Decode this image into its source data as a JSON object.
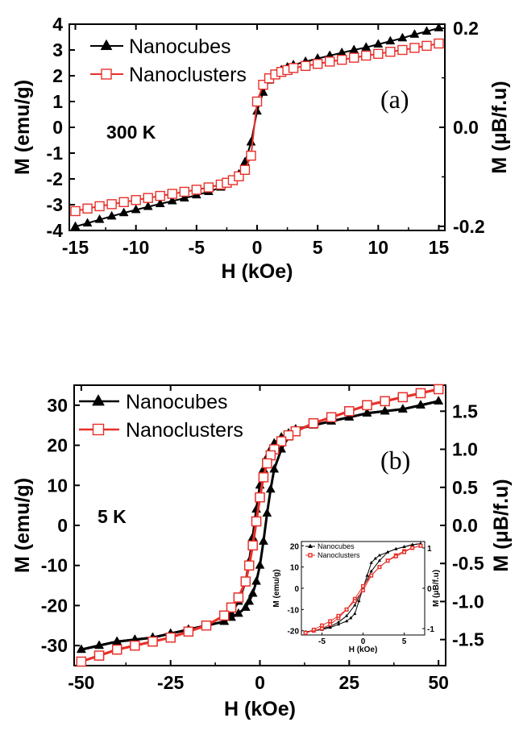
{
  "chart_data": [
    {
      "panel": "a",
      "type": "line",
      "panel_label": "(a)",
      "annotation": "300 K",
      "xlabel": "H (kOe)",
      "ylabel": "M (emu/g)",
      "ylabel_right": "M (μB/f.u)",
      "xlim": [
        -15.5,
        15.5
      ],
      "ylim": [
        -4,
        4
      ],
      "xticks": [
        "-15",
        "-10",
        "-5",
        "0",
        "5",
        "10",
        "15"
      ],
      "yticks": [
        "-4",
        "-3",
        "-2",
        "-1",
        "0",
        "1",
        "2",
        "3",
        "4"
      ],
      "right_ticks": [
        "-0.2",
        "0.0",
        "0.2"
      ],
      "legend": [
        "Nanocubes",
        "Nanoclusters"
      ],
      "colors": {
        "Nanocubes": "#000000",
        "Nanoclusters": "#e8302a"
      },
      "series": [
        {
          "name": "Nanocubes",
          "marker": "triangle",
          "x": [
            -15,
            -14,
            -13,
            -12,
            -11,
            -10,
            -9,
            -8,
            -7,
            -6,
            -5,
            -4,
            -3,
            -2.5,
            -2,
            -1.5,
            -1,
            -0.5,
            0,
            0.5,
            1,
            1.5,
            2,
            2.5,
            3,
            4,
            5,
            6,
            7,
            8,
            9,
            10,
            11,
            12,
            13,
            14,
            15
          ],
          "y": [
            -3.85,
            -3.72,
            -3.58,
            -3.45,
            -3.32,
            -3.2,
            -3.08,
            -2.97,
            -2.86,
            -2.75,
            -2.63,
            -2.5,
            -2.33,
            -2.22,
            -2.06,
            -1.82,
            -1.35,
            -0.58,
            0.62,
            1.35,
            1.82,
            2.06,
            2.22,
            2.33,
            2.42,
            2.55,
            2.67,
            2.78,
            2.89,
            3.0,
            3.1,
            3.22,
            3.34,
            3.46,
            3.6,
            3.72,
            3.85
          ]
        },
        {
          "name": "Nanoclusters",
          "marker": "open-square",
          "x": [
            -15,
            -14,
            -13,
            -12,
            -11,
            -10,
            -9,
            -8,
            -7,
            -6,
            -5,
            -4,
            -3,
            -2.5,
            -2,
            -1.5,
            -1,
            -0.5,
            0,
            0.5,
            1,
            1.5,
            2,
            2.5,
            3,
            4,
            5,
            6,
            7,
            8,
            9,
            10,
            11,
            12,
            13,
            14,
            15
          ],
          "y": [
            -3.25,
            -3.15,
            -3.06,
            -2.98,
            -2.9,
            -2.82,
            -2.74,
            -2.66,
            -2.58,
            -2.5,
            -2.42,
            -2.33,
            -2.22,
            -2.15,
            -2.05,
            -1.9,
            -1.65,
            -1.1,
            1.0,
            1.65,
            1.9,
            2.05,
            2.15,
            2.22,
            2.3,
            2.38,
            2.46,
            2.55,
            2.62,
            2.7,
            2.78,
            2.85,
            2.93,
            3.0,
            3.08,
            3.16,
            3.25
          ]
        }
      ]
    },
    {
      "panel": "b",
      "type": "line",
      "panel_label": "(b)",
      "annotation": "5 K",
      "xlabel": "H (kOe)",
      "ylabel": "M (emu/g)",
      "ylabel_right": "M (μB/f.u)",
      "xlim": [
        -52,
        52
      ],
      "ylim": [
        -35,
        35
      ],
      "xticks": [
        "-50",
        "-25",
        "0",
        "25",
        "50"
      ],
      "yticks": [
        "-30",
        "-20",
        "-10",
        "0",
        "10",
        "20",
        "30"
      ],
      "right_ticks": [
        "-1.5",
        "-1.0",
        "-0.5",
        "0.0",
        "0.5",
        "1.0",
        "1.5"
      ],
      "legend": [
        "Nanocubes",
        "Nanoclusters"
      ],
      "colors": {
        "Nanocubes": "#000000",
        "Nanoclusters": "#e8302a"
      },
      "series": [
        {
          "name": "Nanocubes",
          "marker": "triangle",
          "x": [
            -50,
            -45,
            -40,
            -35,
            -30,
            -25,
            -20,
            -15,
            -10,
            -8,
            -6,
            -4,
            -3,
            -2,
            -1,
            0,
            1,
            2,
            3,
            4,
            6,
            8,
            10,
            15,
            20,
            25,
            30,
            35,
            40,
            45,
            50
          ],
          "y": [
            -31,
            -30,
            -29,
            -28.5,
            -28,
            -27,
            -26,
            -25,
            -24,
            -22,
            -19,
            -14,
            -9,
            -3,
            4,
            10,
            14,
            17,
            19,
            20.5,
            22,
            23,
            24,
            25,
            26,
            27,
            28,
            28.5,
            29,
            30,
            31
          ],
          "x_return": [
            50,
            45,
            40,
            35,
            30,
            25,
            20,
            15,
            10,
            8,
            6,
            4,
            3,
            2,
            1,
            0,
            -1,
            -2,
            -3,
            -4,
            -6,
            -8,
            -10,
            -15,
            -20,
            -25,
            -30,
            -35,
            -40,
            -45,
            -50
          ],
          "y_return": [
            31,
            30,
            29,
            28.5,
            28,
            27,
            26,
            25,
            24,
            22,
            19,
            14,
            9,
            3,
            -4,
            -10,
            -14,
            -17,
            -19,
            -20.5,
            -22,
            -23,
            -24,
            -25,
            -26,
            -27,
            -28,
            -28.5,
            -29,
            -30,
            -31
          ]
        },
        {
          "name": "Nanoclusters",
          "marker": "open-square",
          "x": [
            -50,
            -45,
            -40,
            -35,
            -30,
            -25,
            -20,
            -15,
            -10,
            -8,
            -6,
            -4,
            -3,
            -2,
            -1,
            0,
            1,
            2,
            3,
            4,
            6,
            8,
            10,
            15,
            20,
            25,
            30,
            35,
            40,
            45,
            50
          ],
          "y": [
            -34,
            -32.5,
            -31,
            -30,
            -29,
            -28,
            -26.5,
            -25,
            -22.5,
            -20.5,
            -18,
            -14,
            -10,
            -5,
            1,
            7,
            12,
            15.5,
            17.5,
            19,
            21,
            22.5,
            23.5,
            25.5,
            27,
            28.5,
            30,
            31,
            32,
            33,
            34
          ],
          "x_return": [
            50,
            45,
            40,
            35,
            30,
            25,
            20,
            15,
            10,
            8,
            6,
            4,
            3,
            2,
            1,
            0,
            -1,
            -2,
            -3,
            -4,
            -6,
            -8,
            -10,
            -15,
            -20,
            -25,
            -30,
            -35,
            -40,
            -45,
            -50
          ],
          "y_return": [
            34,
            33,
            32,
            31,
            30,
            28.5,
            27,
            25.5,
            23.5,
            22.5,
            21,
            19,
            17.5,
            15.5,
            12,
            7,
            1,
            -5,
            -10,
            -14,
            -18,
            -20.5,
            -22.5,
            -25,
            -26.5,
            -28,
            -29,
            -30,
            -31,
            -32.5,
            -34
          ]
        }
      ],
      "inset": {
        "xlabel": "H (kOe)",
        "ylabel": "M (emu/g)",
        "ylabel_right": "M (μB/f.u)",
        "xlim": [
          -7.5,
          7.5
        ],
        "ylim": [
          -22,
          22
        ],
        "xticks": [
          "-5",
          "0",
          "5"
        ],
        "yticks": [
          "-20",
          "-10",
          "0",
          "10",
          "20"
        ],
        "right_ticks": [
          "-1",
          "0",
          "1"
        ],
        "legend": [
          "Nanocubes",
          "Nanoclusters"
        ],
        "series": [
          {
            "name": "Nanocubes",
            "up_x": [
              -7,
              -6,
              -5,
              -4,
              -3,
              -2,
              -1,
              0,
              0.5,
              1,
              1.5,
              2,
              3,
              4,
              5,
              6,
              7
            ],
            "up_y": [
              -20.5,
              -20,
              -19,
              -18,
              -16,
              -13,
              -8,
              0,
              6,
              12,
              14,
              15.5,
              17,
              18.5,
              19.5,
              20.5,
              21
            ],
            "down_x": [
              7,
              6,
              5,
              4,
              3,
              2,
              1,
              0,
              -0.5,
              -1,
              -1.5,
              -2,
              -3,
              -4,
              -5,
              -6,
              -7
            ],
            "down_y": [
              21,
              20.5,
              19.5,
              18.5,
              17,
              13,
              8,
              0,
              -6,
              -12,
              -14,
              -15.5,
              -17,
              -18.5,
              -19.5,
              -20,
              -20.5
            ]
          },
          {
            "name": "Nanoclusters",
            "up_x": [
              -7,
              -6,
              -5,
              -4,
              -3,
              -2,
              -1,
              0,
              1,
              2,
              3,
              4,
              5,
              6,
              7
            ],
            "up_y": [
              -21,
              -20,
              -19,
              -17,
              -14,
              -10,
              -5,
              1,
              6,
              10,
              13,
              15.5,
              17.5,
              19,
              20
            ],
            "down_x": [
              7,
              6,
              5,
              4,
              3,
              2,
              1,
              0,
              -1,
              -2,
              -3,
              -4,
              -5,
              -6,
              -7
            ],
            "down_y": [
              20,
              19,
              17,
              15,
              13,
              10,
              6,
              -1,
              -6,
              -10,
              -13,
              -15.5,
              -17.5,
              -19.5,
              -21
            ]
          }
        ]
      }
    }
  ]
}
